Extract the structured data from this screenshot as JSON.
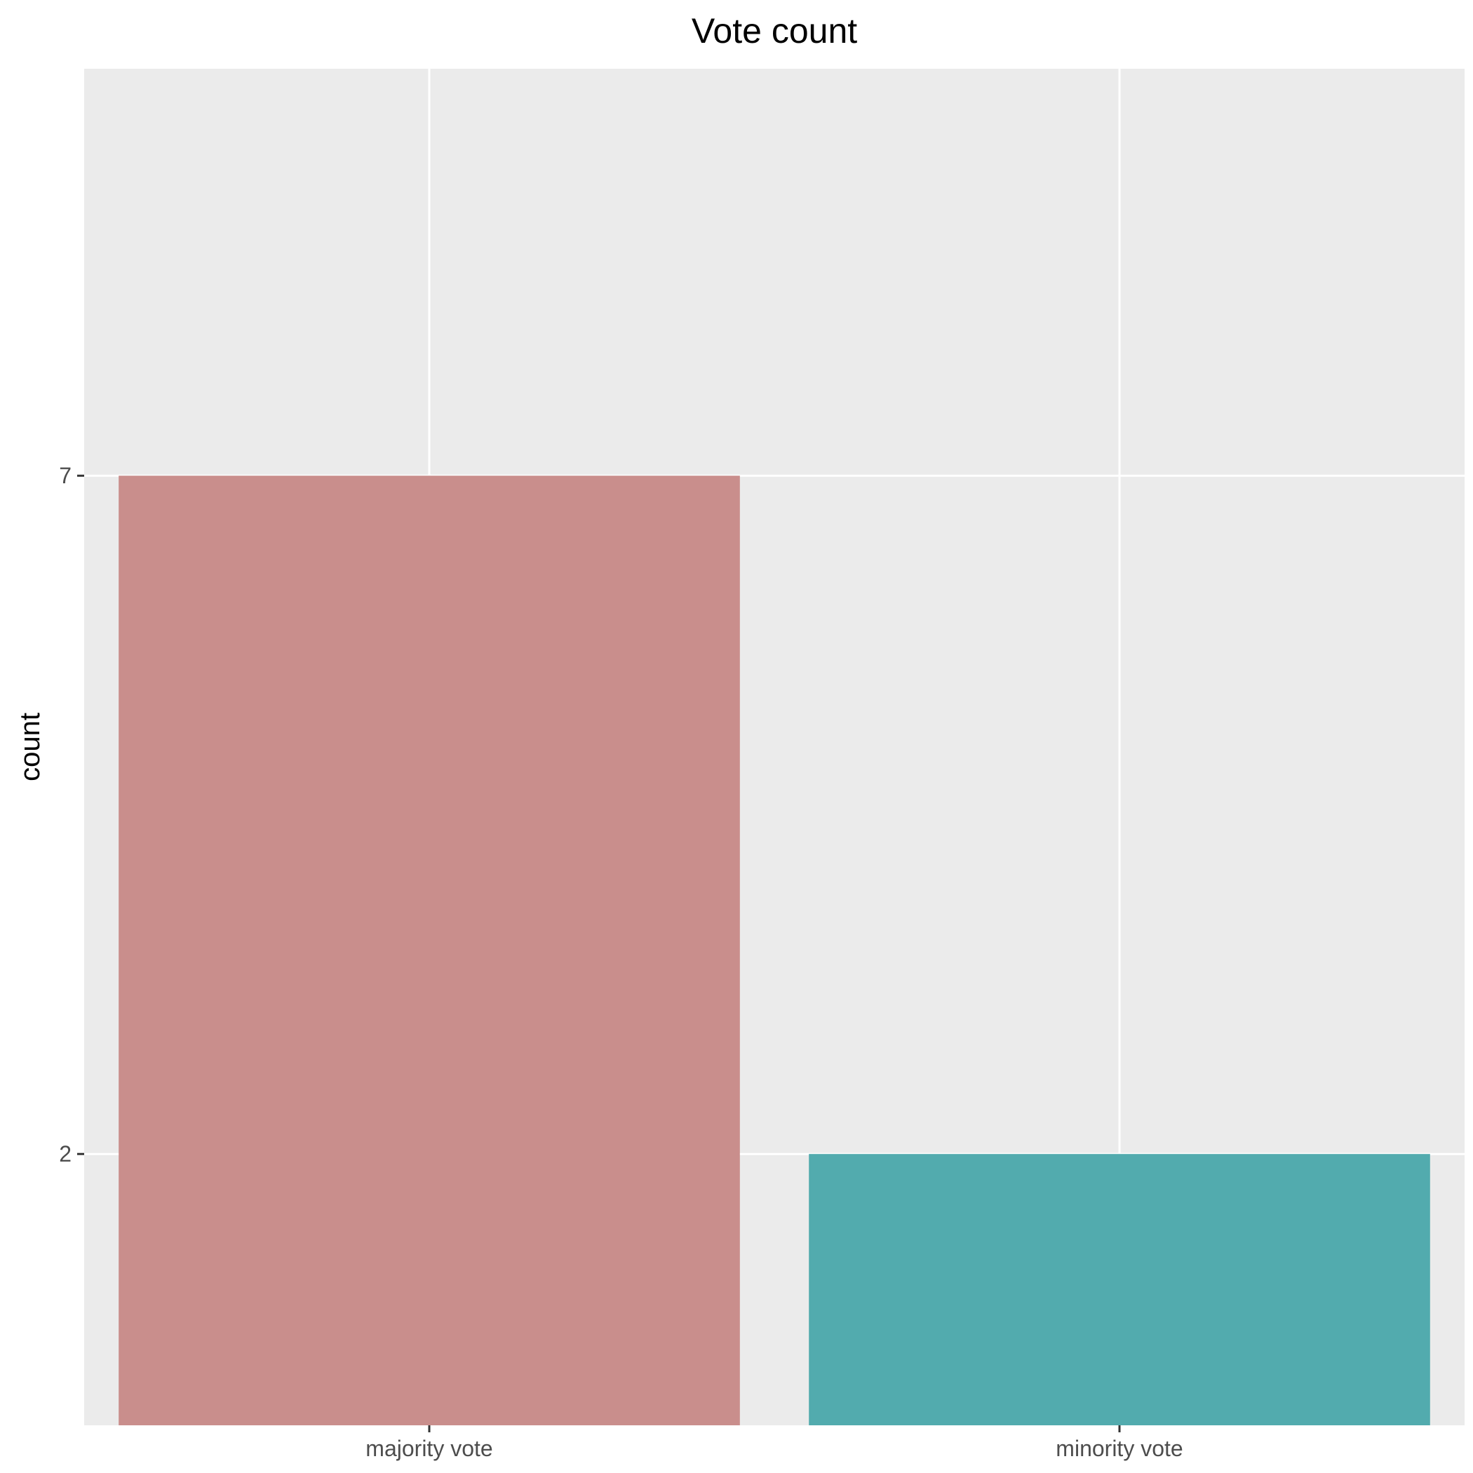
{
  "chart_data": {
    "type": "bar",
    "title": "Vote count",
    "xlabel": "",
    "ylabel": "count",
    "categories": [
      "majority vote",
      "minority vote"
    ],
    "values": [
      7,
      2
    ],
    "colors": [
      "#c98e8c",
      "#52abae"
    ],
    "yticks": [
      2,
      7
    ],
    "ylim": [
      0,
      10
    ],
    "grid": true,
    "panel_background": "#ebebeb",
    "gridline_color": "#ffffff",
    "legend": "none"
  }
}
